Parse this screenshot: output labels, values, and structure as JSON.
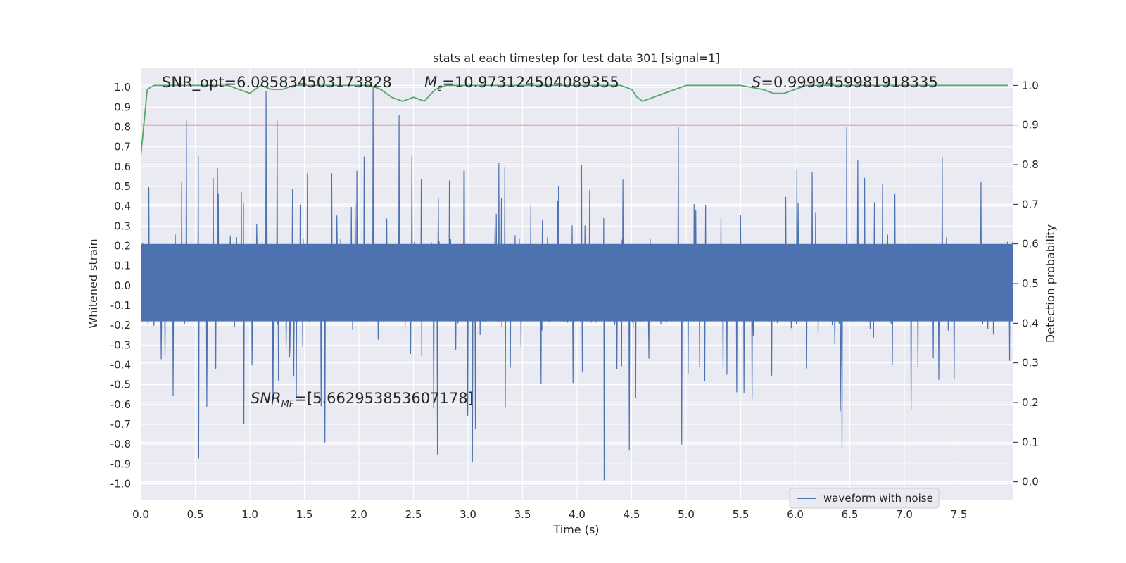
{
  "chart_data": {
    "type": "line",
    "title": "stats at each timestep for test data 301 [signal=1]",
    "xlabel": "Time (s)",
    "ylabel": "Whitened strain",
    "y2label": "Detection probability",
    "xlim": [
      0,
      8
    ],
    "ylim": [
      -1.08,
      1.1
    ],
    "y2lim": [
      -0.045,
      1.045
    ],
    "grid": true,
    "legend_position": "lower-right",
    "x_ticks": [
      "0.0",
      "0.5",
      "1.0",
      "1.5",
      "2.0",
      "2.5",
      "3.0",
      "3.5",
      "4.0",
      "4.5",
      "5.0",
      "5.5",
      "6.0",
      "6.5",
      "7.0",
      "7.5"
    ],
    "y_ticks": [
      "1.0",
      "0.9",
      "0.8",
      "0.7",
      "0.6",
      "0.5",
      "0.4",
      "0.3",
      "0.2",
      "0.1",
      "0.0",
      "-0.1",
      "-0.2",
      "-0.3",
      "-0.4",
      "-0.5",
      "-0.6",
      "-0.7",
      "-0.8",
      "-0.9",
      "-1.0"
    ],
    "y2_ticks": [
      "1.0",
      "0.9",
      "0.8",
      "0.7",
      "0.6",
      "0.5",
      "0.4",
      "0.3",
      "0.2",
      "0.1",
      "0.0"
    ],
    "annotations": {
      "snr_opt": "SNR_opt=6.085834503173828",
      "chirp_mass": "=10.973124504089355",
      "chirp_mass_symbol": "M",
      "chirp_mass_sub": "c",
      "score": "=0.9999459981918335",
      "score_symbol": "S",
      "snr_mf_symbol": "SNR",
      "snr_mf_sub": "MF",
      "snr_mf": "=[5.662953853607178]"
    },
    "series": [
      {
        "name": "waveform with noise",
        "axis": "left",
        "color": "#4c72b0",
        "kind": "dense_noise",
        "x_range": [
          0,
          8
        ],
        "samples": 2048,
        "core_envelope": [
          -0.18,
          0.21
        ],
        "spikes": [
          {
            "x": 0.42,
            "y": 0.83
          },
          {
            "x": 0.53,
            "y": 0.76
          },
          {
            "x": 1.15,
            "y": 0.98
          },
          {
            "x": 1.25,
            "y": 0.83
          },
          {
            "x": 2.13,
            "y": 1.0
          },
          {
            "x": 2.37,
            "y": 0.86
          },
          {
            "x": 4.93,
            "y": 0.8
          },
          {
            "x": 6.47,
            "y": 0.8
          },
          {
            "x": 0.53,
            "y": -0.87
          },
          {
            "x": 1.69,
            "y": -0.79
          },
          {
            "x": 2.72,
            "y": -0.85
          },
          {
            "x": 3.04,
            "y": -0.89
          },
          {
            "x": 4.25,
            "y": -0.98
          },
          {
            "x": 4.48,
            "y": -0.83
          },
          {
            "x": 4.96,
            "y": -0.8
          },
          {
            "x": 6.43,
            "y": -0.82
          }
        ]
      },
      {
        "name": "",
        "axis": "right",
        "color": "#55a868",
        "kind": "line",
        "x": [
          0.0,
          0.06,
          0.12,
          0.4,
          0.8,
          0.9,
          1.0,
          1.1,
          1.2,
          1.3,
          1.4,
          1.6,
          1.8,
          2.0,
          2.1,
          2.2,
          2.3,
          2.4,
          2.5,
          2.6,
          2.7,
          2.8,
          3.0,
          3.5,
          4.0,
          4.4,
          4.5,
          4.55,
          4.6,
          4.7,
          4.8,
          4.9,
          5.0,
          5.5,
          5.7,
          5.8,
          5.9,
          6.0,
          6.1,
          6.3,
          7.0,
          7.95
        ],
        "y": [
          0.82,
          0.99,
          1.0,
          1.0,
          1.0,
          0.99,
          0.98,
          1.0,
          0.99,
          0.99,
          1.0,
          1.0,
          1.0,
          1.0,
          1.0,
          0.99,
          0.97,
          0.96,
          0.97,
          0.96,
          0.99,
          1.0,
          1.0,
          1.0,
          1.0,
          1.0,
          0.99,
          0.97,
          0.96,
          0.97,
          0.98,
          0.99,
          1.0,
          1.0,
          0.99,
          0.98,
          0.98,
          0.99,
          1.0,
          1.0,
          1.0,
          1.0
        ]
      },
      {
        "name": "",
        "axis": "right",
        "color": "#c44e52",
        "kind": "hline",
        "y": 0.9
      }
    ],
    "colors": {
      "plot_background": "#eaeaf2",
      "grid": "#ffffff",
      "waveform": "#4c72b0",
      "probability": "#55a868",
      "threshold": "#c44e52"
    }
  }
}
